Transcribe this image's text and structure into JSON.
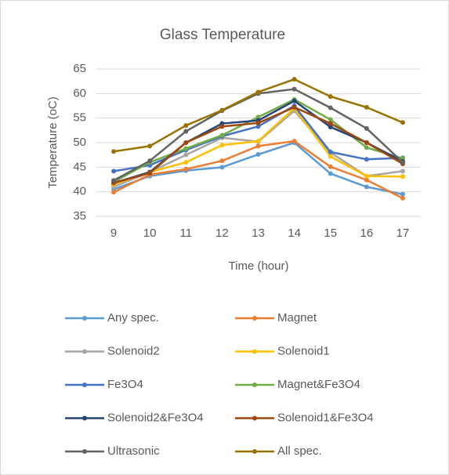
{
  "chart_data": {
    "type": "line",
    "title": "Glass Temperature",
    "x_label": "Time (hour)",
    "y_label": "Temperature (oC)",
    "categories": [
      "9",
      "10",
      "11",
      "12",
      "13",
      "14",
      "15",
      "16",
      "17"
    ],
    "ylim": [
      35,
      65
    ],
    "yticks": [
      35,
      40,
      45,
      50,
      55,
      60,
      65
    ],
    "grid": true,
    "legend": "bottom",
    "series": [
      {
        "name": "Any spec.",
        "color": "#5b9bd5",
        "values": [
          40.5,
          43.2,
          44.3,
          45.0,
          47.6,
          50.0,
          43.7,
          41.0,
          39.5
        ]
      },
      {
        "name": "Magnet",
        "color": "#ed7d31",
        "values": [
          39.9,
          43.5,
          44.6,
          46.3,
          49.3,
          50.3,
          45.1,
          42.4,
          38.7
        ]
      },
      {
        "name": "Solenoid2",
        "color": "#a5a5a5",
        "values": [
          41.0,
          44.0,
          47.5,
          51.0,
          50.2,
          56.5,
          48.0,
          43.2,
          44.2
        ]
      },
      {
        "name": "Solenoid1",
        "color": "#ffc000",
        "values": [
          41.5,
          44.0,
          46.0,
          49.5,
          50.3,
          57.0,
          47.2,
          43.2,
          43.1
        ]
      },
      {
        "name": "Fe3O4",
        "color": "#4472c4",
        "values": [
          44.2,
          45.4,
          48.5,
          51.3,
          53.3,
          57.5,
          48.1,
          46.6,
          46.9
        ]
      },
      {
        "name": "Magnet&Fe3O4",
        "color": "#70ad47",
        "values": [
          42.0,
          46.0,
          48.8,
          51.5,
          55.2,
          58.8,
          54.7,
          49.0,
          46.8
        ]
      },
      {
        "name": "Solenoid2&Fe3O4",
        "color": "#264478",
        "values": [
          41.8,
          44.0,
          50.0,
          53.9,
          54.5,
          58.5,
          53.2,
          50.0,
          46.2
        ]
      },
      {
        "name": "Solenoid1&Fe3O4",
        "color": "#9e480e",
        "values": [
          41.8,
          43.8,
          50.0,
          53.3,
          54.0,
          57.2,
          53.9,
          50.0,
          45.7
        ]
      },
      {
        "name": "Ultrasonic",
        "color": "#636363",
        "values": [
          42.3,
          46.3,
          52.3,
          56.5,
          60.0,
          60.9,
          57.1,
          52.9,
          46.0
        ]
      },
      {
        "name": "All spec.",
        "color": "#997300",
        "values": [
          48.2,
          49.3,
          53.5,
          56.6,
          60.3,
          62.9,
          59.4,
          57.2,
          54.1
        ]
      }
    ]
  }
}
